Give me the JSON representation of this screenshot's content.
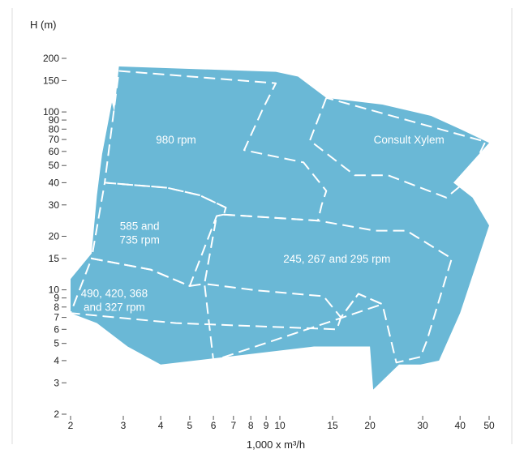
{
  "chart_data": {
    "type": "area",
    "title": "",
    "xlabel": "1,000 x m³/h",
    "ylabel": "H (m)",
    "xscale": "log",
    "yscale": "log",
    "xlim": [
      2,
      50
    ],
    "ylim": [
      2,
      200
    ],
    "grid": false,
    "legend": "none",
    "x_ticks": [
      2,
      3,
      4,
      5,
      6,
      7,
      8,
      9,
      10,
      15,
      20,
      30,
      40,
      50
    ],
    "y_ticks": [
      2,
      3,
      4,
      5,
      6,
      7,
      8,
      9,
      10,
      15,
      20,
      30,
      40,
      50,
      60,
      70,
      80,
      90,
      100,
      150,
      200
    ],
    "fill_color": "#6ab8d6",
    "line_color": "#ffffff",
    "regions": [
      {
        "label": "980 rpm",
        "label_at": [
          4.5,
          70
        ],
        "boundary": [
          [
            2.9,
            170
          ],
          [
            9.7,
            145
          ],
          [
            8.8,
            105
          ],
          [
            7.6,
            61
          ],
          [
            12.0,
            52
          ],
          [
            14.3,
            36
          ],
          [
            13.8,
            30
          ],
          [
            13.4,
            24.5
          ],
          [
            6.5,
            26.5
          ],
          [
            6.6,
            29
          ],
          [
            5.4,
            34
          ],
          [
            4.2,
            37.5
          ],
          [
            2.6,
            40
          ],
          [
            2.9,
            170
          ]
        ]
      },
      {
        "label": "585 and\n735 rpm",
        "label_at": [
          3.4,
          21
        ],
        "boundary": [
          [
            2.6,
            40
          ],
          [
            4.2,
            37.5
          ],
          [
            5.4,
            34
          ],
          [
            6.6,
            29
          ],
          [
            6.5,
            26.5
          ],
          [
            6.15,
            26
          ],
          [
            5.0,
            10.5
          ],
          [
            3.7,
            13
          ],
          [
            2.35,
            15
          ],
          [
            2.6,
            40
          ]
        ]
      },
      {
        "label": "245, 267 and 295 rpm",
        "label_at": [
          15.5,
          15
        ],
        "boundary": [
          [
            6.5,
            26.5
          ],
          [
            13.4,
            24.5
          ],
          [
            20.8,
            21.5
          ],
          [
            26.5,
            21.5
          ],
          [
            37.5,
            15
          ],
          [
            31.0,
            5.2
          ],
          [
            29.5,
            4.2
          ],
          [
            24.5,
            3.9
          ],
          [
            22.0,
            8.3
          ],
          [
            18.3,
            9.5
          ],
          [
            16.0,
            7.0
          ],
          [
            14.0,
            9.2
          ],
          [
            8.5,
            9.9
          ],
          [
            5.6,
            10.8
          ],
          [
            6.15,
            26
          ],
          [
            6.5,
            26.5
          ]
        ]
      },
      {
        "label": "490, 420, 368\nand 327 rpm",
        "label_at": [
          2.8,
          8.8
        ],
        "boundary": [
          [
            2.35,
            15
          ],
          [
            3.7,
            13
          ],
          [
            5.0,
            10.5
          ],
          [
            5.6,
            10.8
          ],
          [
            6.0,
            4.0
          ],
          [
            22.0,
            8.3
          ],
          [
            18.3,
            9.5
          ],
          [
            16.0,
            7.0
          ],
          [
            15.5,
            6.0
          ],
          [
            4.5,
            6.5
          ],
          [
            2.0,
            7.4
          ],
          [
            2.35,
            15
          ]
        ]
      },
      {
        "label": "Consult Xylem",
        "label_at": [
          27.0,
          70
        ],
        "boundary": [
          [
            14.3,
            120
          ],
          [
            12.6,
            69
          ],
          [
            17.8,
            44
          ],
          [
            23.0,
            44
          ],
          [
            36.0,
            33
          ],
          [
            42.0,
            41
          ],
          [
            48.6,
            68
          ],
          [
            14.3,
            120
          ]
        ]
      }
    ]
  }
}
